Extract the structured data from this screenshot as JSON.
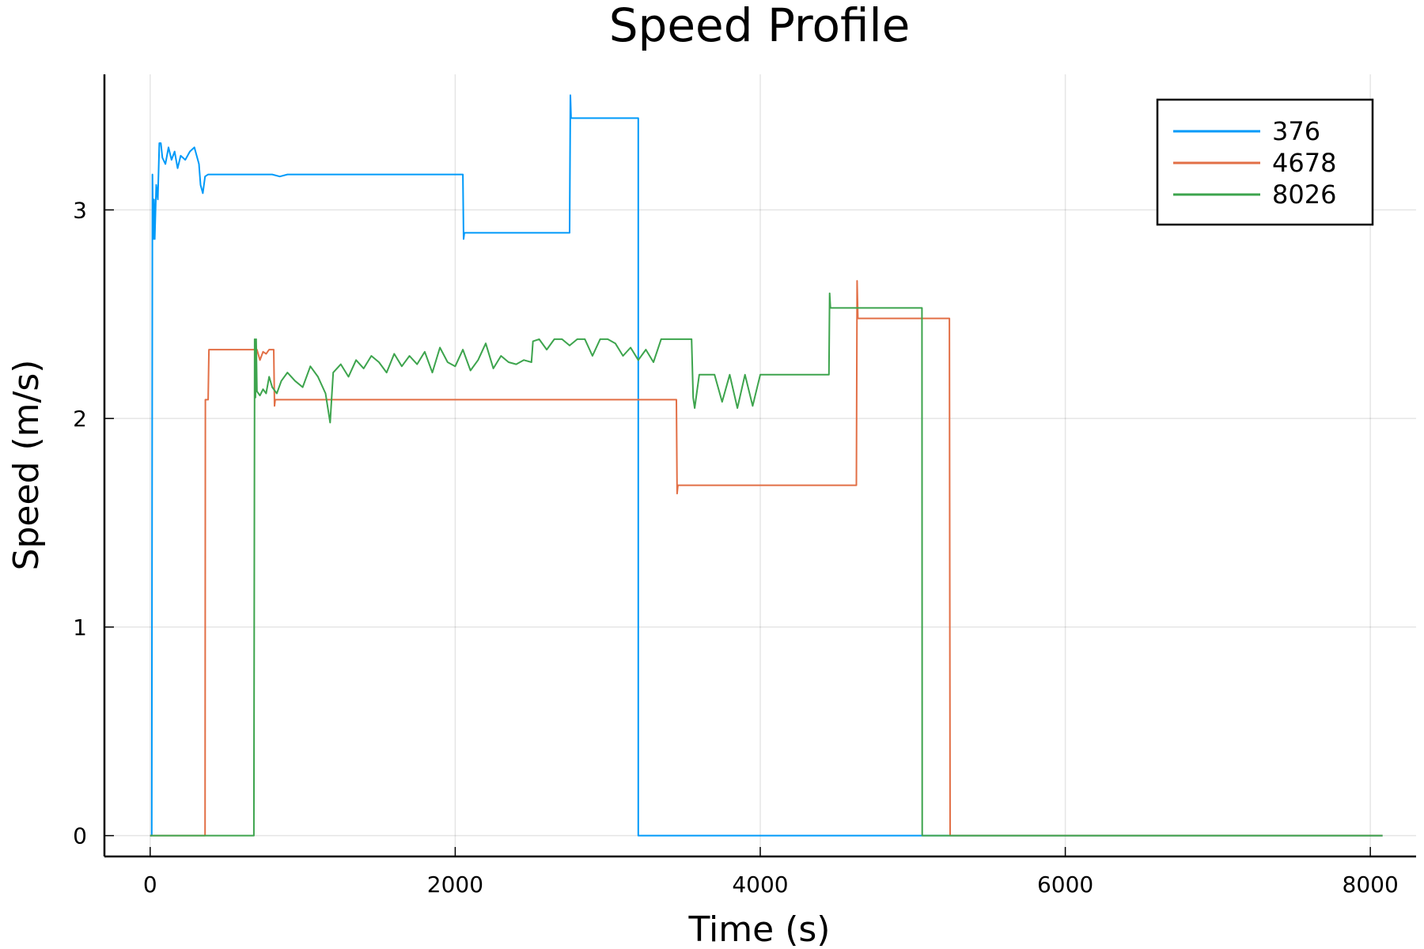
{
  "chart_data": {
    "type": "line",
    "title": "Speed Profile",
    "xlabel": "Time (s)",
    "ylabel": "Speed (m/s)",
    "xlim": [
      -300,
      8300
    ],
    "ylim": [
      -0.1,
      3.65
    ],
    "xticks": [
      0,
      2000,
      4000,
      6000,
      8000
    ],
    "yticks": [
      0,
      1,
      2,
      3
    ],
    "grid": true,
    "legend_position": "top-right",
    "series": [
      {
        "name": "376",
        "color": "#009af9",
        "x": [
          0,
          10,
          15,
          20,
          25,
          30,
          40,
          50,
          60,
          70,
          80,
          100,
          120,
          140,
          160,
          180,
          200,
          230,
          260,
          290,
          320,
          330,
          345,
          360,
          380,
          420,
          600,
          800,
          850,
          900,
          1200,
          1600,
          2050,
          2055,
          2060,
          2065,
          2500,
          2750,
          2755,
          2760,
          2765,
          3200,
          3200,
          8080
        ],
        "y": [
          0,
          0,
          3.17,
          2.86,
          3.05,
          2.86,
          3.12,
          3.05,
          3.32,
          3.32,
          3.25,
          3.22,
          3.3,
          3.24,
          3.28,
          3.2,
          3.26,
          3.24,
          3.28,
          3.3,
          3.22,
          3.12,
          3.08,
          3.16,
          3.17,
          3.17,
          3.17,
          3.17,
          3.16,
          3.17,
          3.17,
          3.17,
          3.17,
          2.86,
          2.89,
          2.89,
          2.89,
          2.89,
          3.55,
          3.44,
          3.44,
          3.44,
          0,
          0
        ]
      },
      {
        "name": "4678",
        "color": "#e26f46",
        "x": [
          0,
          360,
          362,
          380,
          385,
          700,
          720,
          740,
          760,
          780,
          800,
          810,
          815,
          820,
          1200,
          2000,
          3450,
          3455,
          3460,
          3465,
          4000,
          4630,
          4635,
          4640,
          4645,
          5240,
          5245,
          8080
        ],
        "y": [
          0,
          0,
          2.09,
          2.09,
          2.33,
          2.33,
          2.28,
          2.32,
          2.31,
          2.33,
          2.33,
          2.33,
          2.06,
          2.09,
          2.09,
          2.09,
          2.09,
          1.64,
          1.68,
          1.68,
          1.68,
          1.68,
          2.66,
          2.48,
          2.48,
          2.48,
          0,
          0
        ]
      },
      {
        "name": "8026",
        "color": "#3da44d",
        "x": [
          0,
          680,
          685,
          690,
          695,
          700,
          720,
          740,
          760,
          780,
          800,
          830,
          860,
          900,
          950,
          1000,
          1050,
          1100,
          1150,
          1180,
          1200,
          1250,
          1300,
          1350,
          1400,
          1450,
          1500,
          1550,
          1600,
          1650,
          1700,
          1750,
          1800,
          1850,
          1900,
          1950,
          2000,
          2050,
          2100,
          2150,
          2200,
          2250,
          2300,
          2350,
          2400,
          2450,
          2500,
          2510,
          2550,
          2600,
          2650,
          2700,
          2750,
          2800,
          2850,
          2900,
          2950,
          3000,
          3050,
          3100,
          3150,
          3200,
          3250,
          3300,
          3350,
          3400,
          3450,
          3500,
          3550,
          3560,
          3570,
          3600,
          3650,
          3700,
          3750,
          3800,
          3850,
          3900,
          3950,
          4000,
          4100,
          4200,
          4300,
          4400,
          4450,
          4455,
          4460,
          4465,
          4800,
          5060,
          5062,
          8080
        ],
        "y": [
          0,
          0,
          2.38,
          2.1,
          2.38,
          2.13,
          2.11,
          2.14,
          2.12,
          2.2,
          2.15,
          2.12,
          2.18,
          2.22,
          2.18,
          2.15,
          2.25,
          2.2,
          2.12,
          1.98,
          2.22,
          2.26,
          2.2,
          2.28,
          2.24,
          2.3,
          2.27,
          2.22,
          2.31,
          2.25,
          2.3,
          2.26,
          2.32,
          2.22,
          2.34,
          2.27,
          2.25,
          2.33,
          2.23,
          2.28,
          2.36,
          2.24,
          2.3,
          2.27,
          2.26,
          2.28,
          2.27,
          2.37,
          2.38,
          2.33,
          2.38,
          2.38,
          2.35,
          2.38,
          2.38,
          2.3,
          2.38,
          2.38,
          2.36,
          2.3,
          2.34,
          2.28,
          2.33,
          2.27,
          2.38,
          2.38,
          2.38,
          2.38,
          2.38,
          2.1,
          2.05,
          2.21,
          2.21,
          2.21,
          2.08,
          2.21,
          2.05,
          2.21,
          2.06,
          2.21,
          2.21,
          2.21,
          2.21,
          2.21,
          2.21,
          2.6,
          2.53,
          2.53,
          2.53,
          2.53,
          0,
          0
        ]
      }
    ]
  }
}
